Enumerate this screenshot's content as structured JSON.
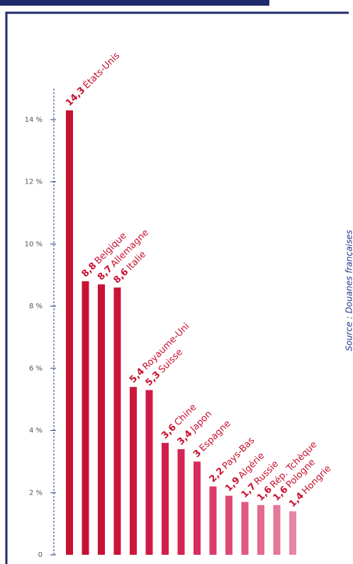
{
  "chart_data": {
    "type": "bar",
    "source": "Source : Douanes françaises",
    "categories": [
      "États-Unis",
      "Belgique",
      "Allemagne",
      "Italie",
      "Royaume-Uni",
      "Suisse",
      "Chine",
      "Japon",
      "Espagne",
      "Pays-Bas",
      "Algérie",
      "Russie",
      "Rép. Tchèque",
      "Pologne",
      "Hongrie"
    ],
    "values": [
      14.3,
      8.8,
      8.7,
      8.6,
      5.4,
      5.3,
      3.6,
      3.4,
      3,
      2.2,
      1.9,
      1.7,
      1.6,
      1.6,
      1.4
    ],
    "value_labels": [
      "14,3",
      "8,8",
      "8,7",
      "8,6",
      "5,4",
      "5,3",
      "3,6",
      "3,4",
      "3",
      "2,2",
      "1,9",
      "1,7",
      "1,6",
      "1,6",
      "1,4"
    ],
    "colors": [
      "#c8102e",
      "#c81132",
      "#c91236",
      "#ca143a",
      "#cc163e",
      "#cf1a44",
      "#d21e4b",
      "#d52553",
      "#d82d5c",
      "#db3b68",
      "#de4a74",
      "#e05a81",
      "#e3698d",
      "#e57798",
      "#e885a3"
    ],
    "ylim": [
      0,
      15
    ],
    "yticks": [
      0,
      {
        "value": 2,
        "label": "2 %"
      },
      {
        "value": 4,
        "label": "4 %"
      },
      {
        "value": 6,
        "label": "6 %"
      },
      {
        "value": 8,
        "label": "8 %"
      },
      {
        "value": 10,
        "label": "10 %"
      },
      {
        "value": 12,
        "label": "12 %"
      },
      {
        "value": 14,
        "label": "14 %"
      }
    ]
  }
}
